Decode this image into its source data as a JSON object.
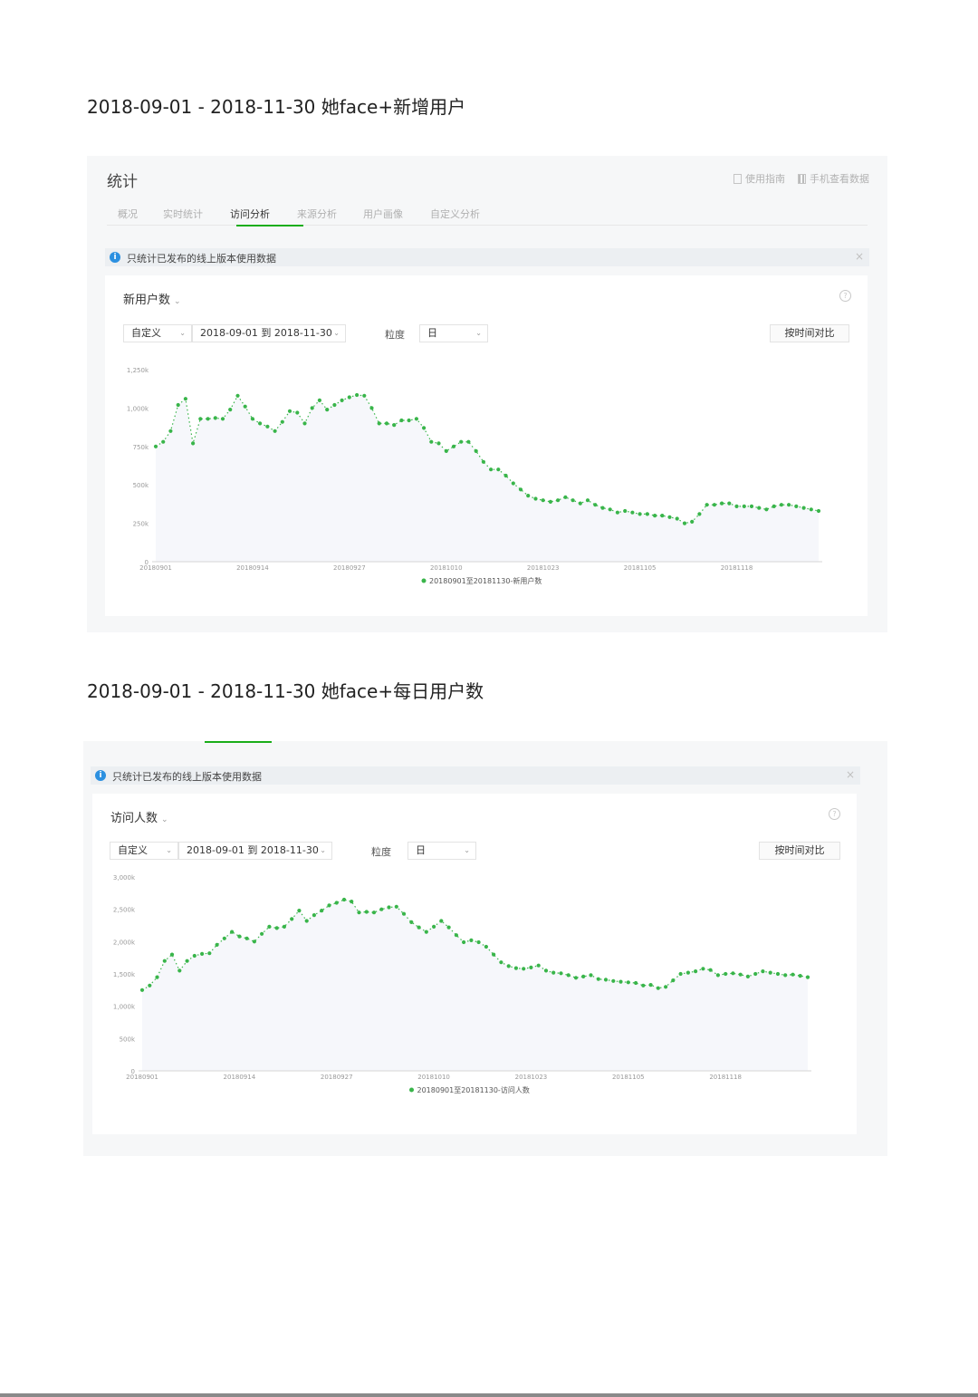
{
  "sections": [
    {
      "heading": "2018-09-01 - 2018-11-30 她face+新增用户",
      "panel": {
        "title": "统计",
        "links": [
          "使用指南",
          "手机查看数据"
        ],
        "tabs": [
          "概况",
          "实时统计",
          "访问分析",
          "来源分析",
          "用户画像",
          "自定义分析"
        ],
        "active_tab": "访问分析",
        "notice": "只统计已发布的线上版本使用数据",
        "metric": "新用户数",
        "range_type": "自定义",
        "date_range": "2018-09-01 到 2018-11-30",
        "granularity_label": "粒度",
        "granularity": "日",
        "compare_button": "按时间对比"
      }
    },
    {
      "heading": "2018-09-01 - 2018-11-30 她face+每日用户数",
      "panel": {
        "notice": "只统计已发布的线上版本使用数据",
        "metric": "访问人数",
        "range_type": "自定义",
        "date_range": "2018-09-01 到 2018-11-30",
        "granularity_label": "粒度",
        "granularity": "日",
        "compare_button": "按时间对比"
      }
    }
  ],
  "colors": {
    "series": "#39b54a",
    "accent": "#1aad19",
    "info": "#2c90e0",
    "area": "#f6f7fb"
  },
  "chart_data": [
    {
      "type": "line",
      "title": "",
      "xlabel": "",
      "ylabel": "",
      "ylim": [
        0,
        1250000
      ],
      "yticks": [
        "0",
        "250k",
        "500k",
        "750k",
        "1,000k",
        "1,250k"
      ],
      "ytick_values": [
        0,
        250000,
        500000,
        750000,
        1000000,
        1250000
      ],
      "xticks": [
        "20180901",
        "20180914",
        "20180927",
        "20181010",
        "20181023",
        "20181105",
        "20181118"
      ],
      "xtick_index": [
        0,
        13,
        26,
        39,
        52,
        65,
        78
      ],
      "legend": "20180901至20181130-新用户数",
      "grid": false,
      "series": [
        {
          "name": "20180901至20181130-新用户数",
          "values": [
            750000,
            780000,
            850000,
            1020000,
            1060000,
            770000,
            930000,
            930000,
            935000,
            930000,
            990000,
            1080000,
            1010000,
            930000,
            900000,
            880000,
            850000,
            910000,
            980000,
            970000,
            900000,
            1000000,
            1050000,
            990000,
            1020000,
            1050000,
            1070000,
            1085000,
            1080000,
            1000000,
            900000,
            900000,
            890000,
            920000,
            920000,
            930000,
            870000,
            780000,
            770000,
            720000,
            750000,
            780000,
            780000,
            720000,
            650000,
            600000,
            600000,
            560000,
            510000,
            470000,
            430000,
            410000,
            400000,
            390000,
            400000,
            420000,
            400000,
            380000,
            400000,
            370000,
            350000,
            340000,
            320000,
            330000,
            320000,
            310000,
            310000,
            300000,
            300000,
            290000,
            280000,
            250000,
            260000,
            310000,
            370000,
            370000,
            380000,
            380000,
            360000,
            360000,
            360000,
            350000,
            340000,
            360000,
            370000,
            370000,
            360000,
            350000,
            340000,
            330000
          ]
        }
      ]
    },
    {
      "type": "line",
      "title": "",
      "xlabel": "",
      "ylabel": "",
      "ylim": [
        0,
        3000000
      ],
      "yticks": [
        "0",
        "500k",
        "1,000k",
        "1,500k",
        "2,000k",
        "2,500k",
        "3,000k"
      ],
      "ytick_values": [
        0,
        500000,
        1000000,
        1500000,
        2000000,
        2500000,
        3000000
      ],
      "xticks": [
        "20180901",
        "20180914",
        "20180927",
        "20181010",
        "20181023",
        "20181105",
        "20181118"
      ],
      "xtick_index": [
        0,
        13,
        26,
        39,
        52,
        65,
        78
      ],
      "legend": "20180901至20181130-访问人数",
      "grid": false,
      "series": [
        {
          "name": "20180901至20181130-访问人数",
          "values": [
            1250000,
            1320000,
            1450000,
            1700000,
            1800000,
            1550000,
            1700000,
            1780000,
            1810000,
            1820000,
            1950000,
            2050000,
            2150000,
            2080000,
            2050000,
            2000000,
            2120000,
            2230000,
            2210000,
            2230000,
            2350000,
            2480000,
            2320000,
            2410000,
            2480000,
            2560000,
            2600000,
            2650000,
            2620000,
            2450000,
            2460000,
            2450000,
            2500000,
            2530000,
            2540000,
            2430000,
            2300000,
            2220000,
            2150000,
            2230000,
            2320000,
            2220000,
            2100000,
            1990000,
            2020000,
            1990000,
            1920000,
            1800000,
            1680000,
            1620000,
            1590000,
            1580000,
            1600000,
            1630000,
            1550000,
            1520000,
            1510000,
            1480000,
            1440000,
            1460000,
            1480000,
            1420000,
            1410000,
            1390000,
            1380000,
            1370000,
            1360000,
            1320000,
            1330000,
            1280000,
            1300000,
            1400000,
            1500000,
            1520000,
            1540000,
            1580000,
            1560000,
            1480000,
            1500000,
            1510000,
            1490000,
            1460000,
            1500000,
            1540000,
            1520000,
            1500000,
            1480000,
            1490000,
            1470000,
            1450000
          ]
        }
      ]
    }
  ]
}
